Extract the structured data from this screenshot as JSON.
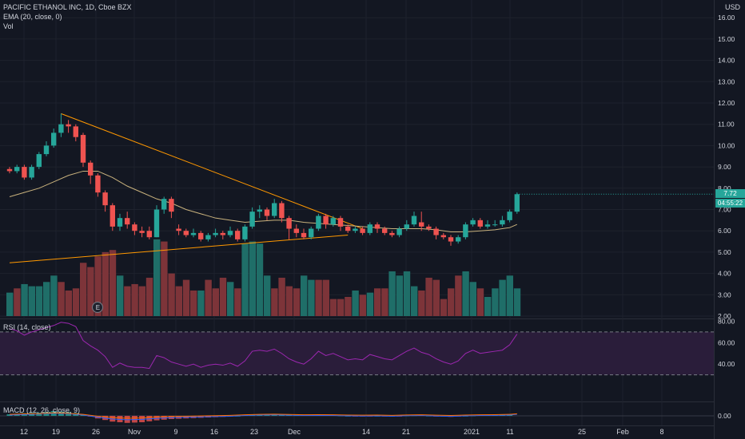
{
  "header": {
    "symbol_line": "PACIFIC ETHANOL INC, 1D, Cboe BZX",
    "ema_line": "EMA (20, close, 0)",
    "vol_line": "Vol",
    "currency": "USD"
  },
  "badges": {
    "last_price": "7.72",
    "countdown": "04:55:22",
    "earnings": "E"
  },
  "rsi_panel": {
    "label": "RSI (14, close)",
    "ticks": [
      "80.00",
      "60.00",
      "40.00"
    ]
  },
  "macd_panel": {
    "label": "MACD (12, 26, close, 9)",
    "ticks": [
      "0.00"
    ]
  },
  "colors": {
    "background": "#131722",
    "up": "#26a69a",
    "down": "#ef5350",
    "ema": "#c9b27d",
    "trendline": "#ff9800",
    "rsi": "#9c27b0"
  },
  "chart_data": {
    "type": "candlestick",
    "title": "PACIFIC ETHANOL INC, 1D, Cboe BZX",
    "y_ticks": [
      "2.00",
      "3.00",
      "4.00",
      "5.00",
      "6.00",
      "7.00",
      "8.00",
      "9.00",
      "10.00",
      "11.00",
      "12.00",
      "13.00",
      "14.00",
      "15.00",
      "16.00"
    ],
    "ylim": [
      2,
      16.5
    ],
    "x_ticks": [
      "12",
      "19",
      "26",
      "Nov",
      "9",
      "16",
      "23",
      "Dec",
      "14",
      "21",
      "2021",
      "11",
      "25",
      "Feb",
      "8"
    ],
    "candles": [
      [
        0,
        8.9,
        8.8,
        9.0,
        8.7
      ],
      [
        1,
        8.8,
        9.0,
        9.1,
        8.7
      ],
      [
        2,
        9.0,
        8.5,
        9.1,
        8.4
      ],
      [
        3,
        8.5,
        9.0,
        9.1,
        8.4
      ],
      [
        4,
        9.0,
        9.6,
        9.7,
        8.9
      ],
      [
        5,
        9.6,
        10.0,
        10.2,
        9.5
      ],
      [
        6,
        10.0,
        10.6,
        10.8,
        9.9
      ],
      [
        7,
        10.6,
        11.0,
        11.5,
        10.4
      ],
      [
        8,
        11.0,
        10.9,
        11.2,
        10.6
      ],
      [
        9,
        10.9,
        10.4,
        11.0,
        10.2
      ],
      [
        10,
        10.5,
        9.2,
        10.6,
        9.0
      ],
      [
        11,
        9.2,
        8.6,
        9.3,
        8.2
      ],
      [
        12,
        8.6,
        7.8,
        8.7,
        7.6
      ],
      [
        13,
        7.8,
        7.2,
        7.9,
        6.9
      ],
      [
        14,
        7.2,
        6.2,
        7.3,
        6.0
      ],
      [
        15,
        6.2,
        6.6,
        6.8,
        6.0
      ],
      [
        16,
        6.6,
        6.3,
        6.9,
        6.1
      ],
      [
        17,
        6.3,
        6.0,
        6.4,
        5.8
      ],
      [
        18,
        6.0,
        5.9,
        6.2,
        5.7
      ],
      [
        19,
        6.0,
        5.7,
        6.2,
        5.6
      ],
      [
        20,
        5.7,
        7.0,
        7.2,
        5.7
      ],
      [
        21,
        7.0,
        7.5,
        7.6,
        6.8
      ],
      [
        22,
        7.5,
        6.9,
        7.6,
        6.6
      ],
      [
        23,
        6.1,
        6.0,
        6.3,
        5.8
      ],
      [
        24,
        6.0,
        5.8,
        6.1,
        5.7
      ],
      [
        25,
        5.8,
        5.9,
        6.1,
        5.7
      ],
      [
        26,
        5.9,
        5.6,
        6.0,
        5.5
      ],
      [
        27,
        5.6,
        5.8,
        5.9,
        5.5
      ],
      [
        28,
        5.8,
        5.9,
        6.1,
        5.7
      ],
      [
        29,
        5.9,
        5.8,
        6.0,
        5.6
      ],
      [
        30,
        5.8,
        6.0,
        6.2,
        5.7
      ],
      [
        31,
        6.0,
        5.6,
        6.1,
        5.5
      ],
      [
        32,
        5.6,
        6.2,
        6.3,
        5.5
      ],
      [
        33,
        6.2,
        6.9,
        7.1,
        6.1
      ],
      [
        34,
        6.9,
        7.0,
        7.2,
        6.6
      ],
      [
        35,
        7.0,
        6.7,
        7.1,
        6.5
      ],
      [
        36,
        6.7,
        7.3,
        7.5,
        6.6
      ],
      [
        37,
        7.3,
        6.6,
        7.4,
        6.4
      ],
      [
        38,
        6.6,
        6.1,
        6.7,
        5.6
      ],
      [
        39,
        6.1,
        5.9,
        6.3,
        5.7
      ],
      [
        40,
        5.9,
        5.7,
        6.1,
        5.6
      ],
      [
        41,
        5.7,
        6.1,
        6.2,
        5.6
      ],
      [
        42,
        6.1,
        6.7,
        6.8,
        6.0
      ],
      [
        43,
        6.7,
        6.3,
        6.8,
        6.1
      ],
      [
        44,
        6.3,
        6.6,
        6.7,
        6.2
      ],
      [
        45,
        6.6,
        6.2,
        6.7,
        6.0
      ],
      [
        46,
        6.2,
        6.0,
        6.3,
        5.9
      ],
      [
        47,
        6.0,
        6.1,
        6.2,
        5.9
      ],
      [
        48,
        6.1,
        5.9,
        6.2,
        5.8
      ],
      [
        49,
        5.9,
        6.3,
        6.4,
        5.8
      ],
      [
        50,
        6.3,
        6.1,
        6.4,
        5.9
      ],
      [
        51,
        6.1,
        5.9,
        6.2,
        5.8
      ],
      [
        52,
        5.9,
        5.8,
        6.0,
        5.7
      ],
      [
        53,
        5.8,
        6.1,
        6.2,
        5.7
      ],
      [
        54,
        6.1,
        6.3,
        6.5,
        6.0
      ],
      [
        55,
        6.3,
        6.7,
        6.9,
        6.2
      ],
      [
        56,
        6.4,
        6.2,
        6.9,
        6.0
      ],
      [
        57,
        6.2,
        6.1,
        6.3,
        6.0
      ],
      [
        58,
        6.1,
        5.8,
        6.2,
        5.6
      ],
      [
        59,
        5.8,
        5.7,
        5.9,
        5.6
      ],
      [
        60,
        5.7,
        5.5,
        5.8,
        5.3
      ],
      [
        61,
        5.5,
        5.7,
        5.8,
        5.4
      ],
      [
        62,
        5.7,
        6.3,
        6.4,
        5.6
      ],
      [
        63,
        6.3,
        6.5,
        6.6,
        6.2
      ],
      [
        64,
        6.5,
        6.2,
        6.6,
        6.1
      ],
      [
        65,
        6.2,
        6.3,
        6.5,
        6.1
      ],
      [
        66,
        6.3,
        6.3,
        6.5,
        6.2
      ],
      [
        67,
        6.3,
        6.5,
        6.7,
        6.2
      ],
      [
        68,
        6.5,
        6.9,
        7.0,
        6.4
      ],
      [
        69,
        6.9,
        7.72,
        7.8,
        6.8
      ]
    ],
    "volume": [
      [
        0,
        3.1,
        1
      ],
      [
        1,
        3.3,
        0
      ],
      [
        2,
        3.5,
        1
      ],
      [
        3,
        3.4,
        1
      ],
      [
        4,
        3.4,
        1
      ],
      [
        5,
        3.6,
        1
      ],
      [
        6,
        3.9,
        1
      ],
      [
        7,
        3.6,
        0
      ],
      [
        8,
        3.2,
        0
      ],
      [
        9,
        3.3,
        0
      ],
      [
        10,
        4.5,
        0
      ],
      [
        11,
        4.3,
        0
      ],
      [
        12,
        4.8,
        0
      ],
      [
        13,
        5.0,
        0
      ],
      [
        14,
        5.1,
        0
      ],
      [
        15,
        3.9,
        1
      ],
      [
        16,
        3.4,
        0
      ],
      [
        17,
        3.5,
        0
      ],
      [
        18,
        3.4,
        0
      ],
      [
        19,
        3.8,
        0
      ],
      [
        20,
        5.6,
        1
      ],
      [
        21,
        5.5,
        0
      ],
      [
        22,
        4.0,
        0
      ],
      [
        23,
        3.4,
        0
      ],
      [
        24,
        3.7,
        0
      ],
      [
        25,
        3.2,
        0
      ],
      [
        26,
        3.2,
        1
      ],
      [
        27,
        3.7,
        0
      ],
      [
        28,
        3.3,
        0
      ],
      [
        29,
        3.8,
        0
      ],
      [
        30,
        3.6,
        1
      ],
      [
        31,
        3.3,
        0
      ],
      [
        32,
        5.4,
        1
      ],
      [
        33,
        5.5,
        1
      ],
      [
        34,
        5.4,
        1
      ],
      [
        35,
        3.9,
        1
      ],
      [
        36,
        3.3,
        0
      ],
      [
        37,
        3.8,
        0
      ],
      [
        38,
        3.4,
        0
      ],
      [
        39,
        3.3,
        0
      ],
      [
        40,
        3.9,
        1
      ],
      [
        41,
        3.7,
        1
      ],
      [
        42,
        3.7,
        0
      ],
      [
        43,
        3.7,
        0
      ],
      [
        44,
        2.8,
        0
      ],
      [
        45,
        2.8,
        0
      ],
      [
        46,
        2.9,
        0
      ],
      [
        47,
        3.2,
        1
      ],
      [
        48,
        3.0,
        0
      ],
      [
        49,
        3.1,
        1
      ],
      [
        50,
        3.3,
        0
      ],
      [
        51,
        3.3,
        0
      ],
      [
        52,
        4.1,
        1
      ],
      [
        53,
        3.9,
        1
      ],
      [
        54,
        4.1,
        1
      ],
      [
        55,
        3.4,
        1
      ],
      [
        56,
        3.2,
        0
      ],
      [
        57,
        3.8,
        0
      ],
      [
        58,
        3.7,
        0
      ],
      [
        59,
        2.8,
        0
      ],
      [
        60,
        3.3,
        0
      ],
      [
        61,
        3.9,
        0
      ],
      [
        62,
        4.1,
        1
      ],
      [
        63,
        3.6,
        1
      ],
      [
        64,
        3.3,
        0
      ],
      [
        65,
        2.9,
        1
      ],
      [
        66,
        3.3,
        1
      ],
      [
        67,
        3.7,
        1
      ],
      [
        68,
        3.9,
        1
      ],
      [
        69,
        3.3,
        1
      ]
    ],
    "ema": [
      [
        0,
        7.6
      ],
      [
        2,
        7.8
      ],
      [
        4,
        8.0
      ],
      [
        6,
        8.3
      ],
      [
        8,
        8.6
      ],
      [
        10,
        8.8
      ],
      [
        12,
        8.8
      ],
      [
        14,
        8.5
      ],
      [
        16,
        8.1
      ],
      [
        18,
        7.8
      ],
      [
        20,
        7.5
      ],
      [
        22,
        7.3
      ],
      [
        24,
        7.0
      ],
      [
        26,
        6.8
      ],
      [
        28,
        6.6
      ],
      [
        30,
        6.5
      ],
      [
        32,
        6.4
      ],
      [
        34,
        6.45
      ],
      [
        36,
        6.5
      ],
      [
        38,
        6.5
      ],
      [
        40,
        6.4
      ],
      [
        42,
        6.35
      ],
      [
        44,
        6.3
      ],
      [
        46,
        6.25
      ],
      [
        48,
        6.2
      ],
      [
        50,
        6.15
      ],
      [
        52,
        6.1
      ],
      [
        54,
        6.1
      ],
      [
        56,
        6.1
      ],
      [
        58,
        6.05
      ],
      [
        60,
        5.95
      ],
      [
        62,
        5.95
      ],
      [
        64,
        6.0
      ],
      [
        66,
        6.05
      ],
      [
        68,
        6.15
      ],
      [
        69,
        6.3
      ]
    ],
    "trendlines": [
      {
        "from": [
          7,
          11.5
        ],
        "to": [
          48,
          6.1
        ]
      },
      {
        "from": [
          0,
          4.5
        ],
        "to": [
          46,
          5.8
        ]
      }
    ],
    "rsi": [
      [
        0,
        73
      ],
      [
        1,
        71
      ],
      [
        2,
        67
      ],
      [
        3,
        70
      ],
      [
        4,
        72
      ],
      [
        5,
        74
      ],
      [
        6,
        76
      ],
      [
        7,
        79
      ],
      [
        8,
        78
      ],
      [
        9,
        75
      ],
      [
        10,
        62
      ],
      [
        11,
        57
      ],
      [
        12,
        53
      ],
      [
        13,
        47
      ],
      [
        14,
        37
      ],
      [
        15,
        41
      ],
      [
        16,
        38
      ],
      [
        17,
        37
      ],
      [
        18,
        37
      ],
      [
        19,
        36
      ],
      [
        20,
        48
      ],
      [
        21,
        46
      ],
      [
        22,
        42
      ],
      [
        23,
        40
      ],
      [
        24,
        38
      ],
      [
        25,
        40
      ],
      [
        26,
        37
      ],
      [
        27,
        39
      ],
      [
        28,
        40
      ],
      [
        29,
        39
      ],
      [
        30,
        41
      ],
      [
        31,
        38
      ],
      [
        32,
        43
      ],
      [
        33,
        52
      ],
      [
        34,
        53
      ],
      [
        35,
        52
      ],
      [
        36,
        54
      ],
      [
        37,
        50
      ],
      [
        38,
        45
      ],
      [
        39,
        42
      ],
      [
        40,
        40
      ],
      [
        41,
        45
      ],
      [
        42,
        52
      ],
      [
        43,
        48
      ],
      [
        44,
        50
      ],
      [
        45,
        47
      ],
      [
        46,
        44
      ],
      [
        47,
        45
      ],
      [
        48,
        44
      ],
      [
        49,
        49
      ],
      [
        50,
        47
      ],
      [
        51,
        45
      ],
      [
        52,
        44
      ],
      [
        53,
        48
      ],
      [
        54,
        52
      ],
      [
        55,
        55
      ],
      [
        56,
        51
      ],
      [
        57,
        49
      ],
      [
        58,
        45
      ],
      [
        59,
        42
      ],
      [
        60,
        40
      ],
      [
        61,
        43
      ],
      [
        62,
        50
      ],
      [
        63,
        53
      ],
      [
        64,
        50
      ],
      [
        65,
        51
      ],
      [
        66,
        52
      ],
      [
        67,
        53
      ],
      [
        68,
        58
      ],
      [
        69,
        68
      ]
    ],
    "rsi_levels": [
      70,
      30
    ],
    "macd_hist": [
      [
        0,
        0.05
      ],
      [
        2,
        0.08
      ],
      [
        4,
        0.1
      ],
      [
        6,
        0.15
      ],
      [
        8,
        0.12
      ],
      [
        10,
        0.05
      ],
      [
        12,
        -0.08
      ],
      [
        14,
        -0.18
      ],
      [
        16,
        -0.22
      ],
      [
        18,
        -0.2
      ],
      [
        20,
        -0.14
      ],
      [
        22,
        -0.1
      ],
      [
        24,
        -0.08
      ],
      [
        26,
        -0.06
      ],
      [
        28,
        -0.04
      ],
      [
        30,
        -0.02
      ],
      [
        32,
        0.02
      ],
      [
        34,
        0.05
      ],
      [
        36,
        0.06
      ],
      [
        38,
        0.04
      ],
      [
        40,
        0.02
      ],
      [
        42,
        0.03
      ],
      [
        44,
        0.02
      ],
      [
        46,
        0.0
      ],
      [
        48,
        -0.01
      ],
      [
        50,
        0.0
      ],
      [
        52,
        -0.02
      ],
      [
        54,
        0.01
      ],
      [
        56,
        0.02
      ],
      [
        58,
        -0.01
      ],
      [
        60,
        -0.03
      ],
      [
        62,
        0.0
      ],
      [
        64,
        0.02
      ],
      [
        66,
        0.03
      ],
      [
        68,
        0.05
      ],
      [
        69,
        0.09
      ]
    ]
  }
}
